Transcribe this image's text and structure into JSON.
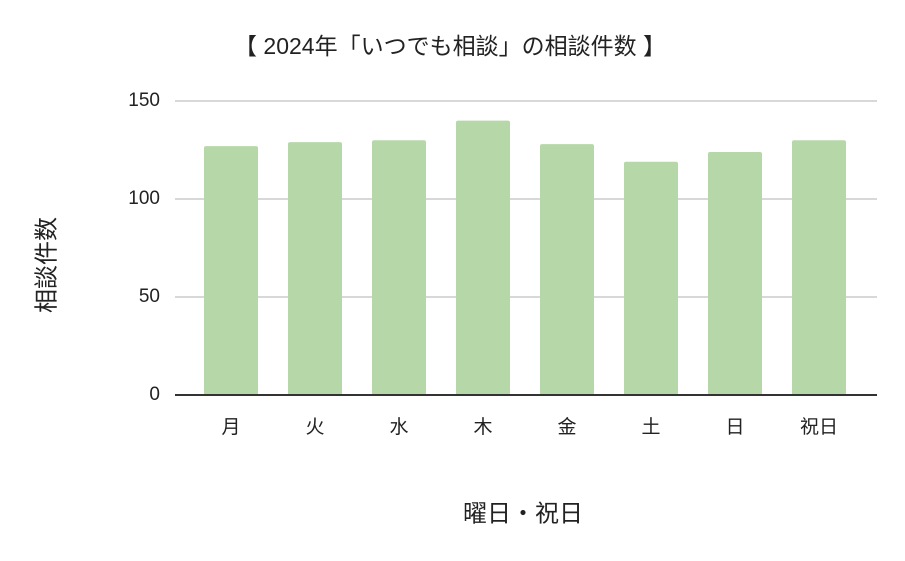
{
  "chart_data": {
    "type": "bar",
    "title": "【 2024年「いつでも相談」の相談件数 】",
    "x_label": "曜日・祝日",
    "y_label": "相談件数",
    "categories": [
      "月",
      "火",
      "水",
      "木",
      "金",
      "土",
      "日",
      "祝日"
    ],
    "values": [
      127,
      129,
      130,
      140,
      128,
      119,
      124,
      130
    ],
    "color": "#b6d7a8",
    "ylim": [
      0,
      150
    ],
    "yticks": [
      0,
      50,
      100,
      150
    ],
    "grid": true
  }
}
